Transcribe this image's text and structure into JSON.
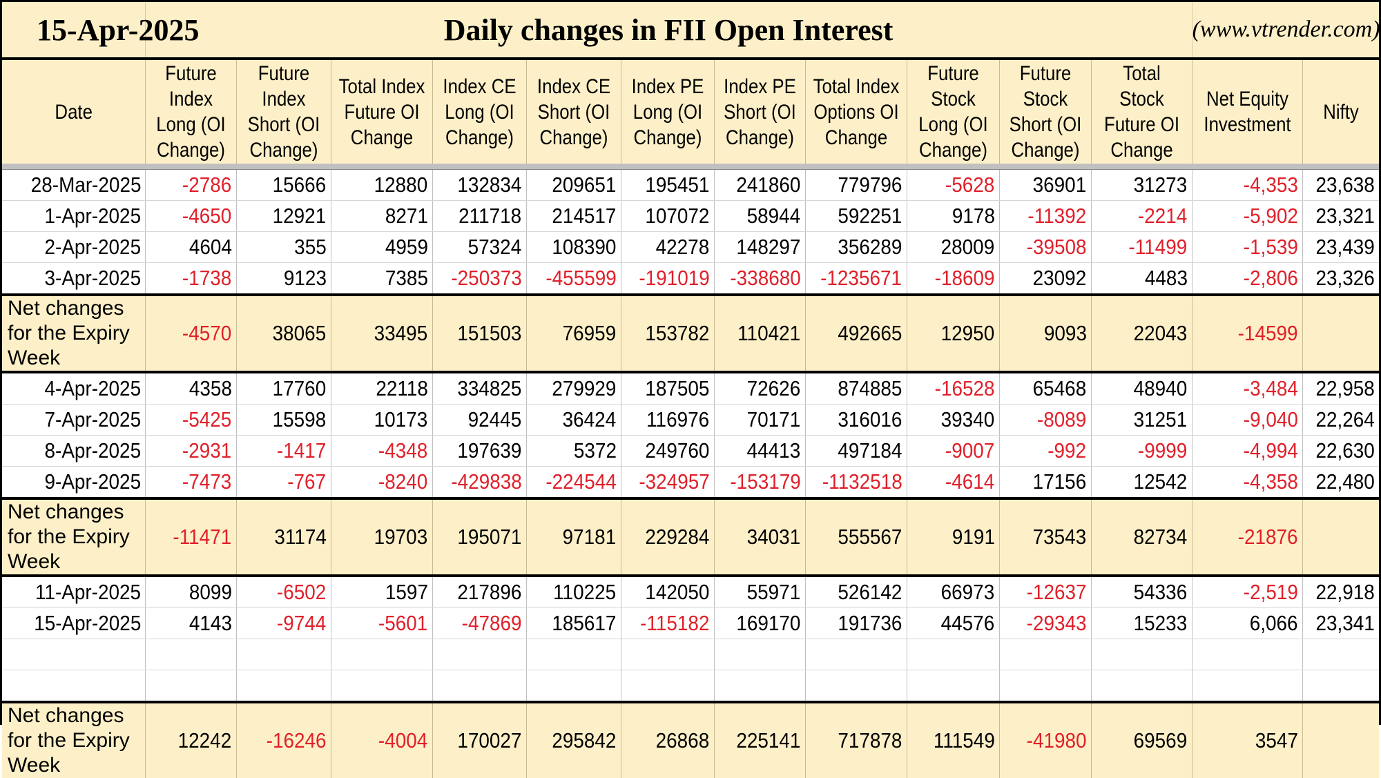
{
  "title": {
    "date": "15-Apr-2025",
    "heading": "Daily changes in FII Open Interest",
    "website": "(www.vtrender.com)"
  },
  "columns": [
    "Date",
    "Future Index Long (OI Change)",
    "Future Index Short (OI Change)",
    "Total Index Future OI Change",
    "Index CE Long (OI Change)",
    "Index CE Short (OI Change)",
    "Index PE Long (OI Change)",
    "Index PE Short (OI Change)",
    "Total Index Options OI Change",
    "Future Stock Long (OI Change)",
    "Future Stock Short (OI Change)",
    "Total Stock Future OI Change",
    "Net Equity Investment",
    "Nifty"
  ],
  "colors": {
    "header_bg": "#fdf0c8",
    "negative": "#e0202a",
    "separator": "#c0c0c0"
  },
  "weeks": [
    {
      "rows": [
        [
          "28-Mar-2025",
          "-2786",
          "15666",
          "12880",
          "132834",
          "209651",
          "195451",
          "241860",
          "779796",
          "-5628",
          "36901",
          "31273",
          "-4,353",
          "23,638"
        ],
        [
          "1-Apr-2025",
          "-4650",
          "12921",
          "8271",
          "211718",
          "214517",
          "107072",
          "58944",
          "592251",
          "9178",
          "-11392",
          "-2214",
          "-5,902",
          "23,321"
        ],
        [
          "2-Apr-2025",
          "4604",
          "355",
          "4959",
          "57324",
          "108390",
          "42278",
          "148297",
          "356289",
          "28009",
          "-39508",
          "-11499",
          "-1,539",
          "23,439"
        ],
        [
          "3-Apr-2025",
          "-1738",
          "9123",
          "7385",
          "-250373",
          "-455599",
          "-191019",
          "-338680",
          "-1235671",
          "-18609",
          "23092",
          "4483",
          "-2,806",
          "23,326"
        ]
      ],
      "blank_rows": 0,
      "summary_label": "Net changes for the Expiry Week",
      "summary": [
        "-4570",
        "38065",
        "33495",
        "151503",
        "76959",
        "153782",
        "110421",
        "492665",
        "12950",
        "9093",
        "22043",
        "-14599",
        ""
      ]
    },
    {
      "rows": [
        [
          "4-Apr-2025",
          "4358",
          "17760",
          "22118",
          "334825",
          "279929",
          "187505",
          "72626",
          "874885",
          "-16528",
          "65468",
          "48940",
          "-3,484",
          "22,958"
        ],
        [
          "7-Apr-2025",
          "-5425",
          "15598",
          "10173",
          "92445",
          "36424",
          "116976",
          "70171",
          "316016",
          "39340",
          "-8089",
          "31251",
          "-9,040",
          "22,264"
        ],
        [
          "8-Apr-2025",
          "-2931",
          "-1417",
          "-4348",
          "197639",
          "5372",
          "249760",
          "44413",
          "497184",
          "-9007",
          "-992",
          "-9999",
          "-4,994",
          "22,630"
        ],
        [
          "9-Apr-2025",
          "-7473",
          "-767",
          "-8240",
          "-429838",
          "-224544",
          "-324957",
          "-153179",
          "-1132518",
          "-4614",
          "17156",
          "12542",
          "-4,358",
          "22,480"
        ]
      ],
      "blank_rows": 0,
      "summary_label": "Net changes for the Expiry Week",
      "summary": [
        "-11471",
        "31174",
        "19703",
        "195071",
        "97181",
        "229284",
        "34031",
        "555567",
        "9191",
        "73543",
        "82734",
        "-21876",
        ""
      ]
    },
    {
      "rows": [
        [
          "11-Apr-2025",
          "8099",
          "-6502",
          "1597",
          "217896",
          "110225",
          "142050",
          "55971",
          "526142",
          "66973",
          "-12637",
          "54336",
          "-2,519",
          "22,918"
        ],
        [
          "15-Apr-2025",
          "4143",
          "-9744",
          "-5601",
          "-47869",
          "185617",
          "-115182",
          "169170",
          "191736",
          "44576",
          "-29343",
          "15233",
          "6,066",
          "23,341"
        ]
      ],
      "blank_rows": 2,
      "summary_label": "Net changes for the Expiry Week",
      "summary": [
        "12242",
        "-16246",
        "-4004",
        "170027",
        "295842",
        "26868",
        "225141",
        "717878",
        "111549",
        "-41980",
        "69569",
        "3547",
        ""
      ]
    }
  ]
}
